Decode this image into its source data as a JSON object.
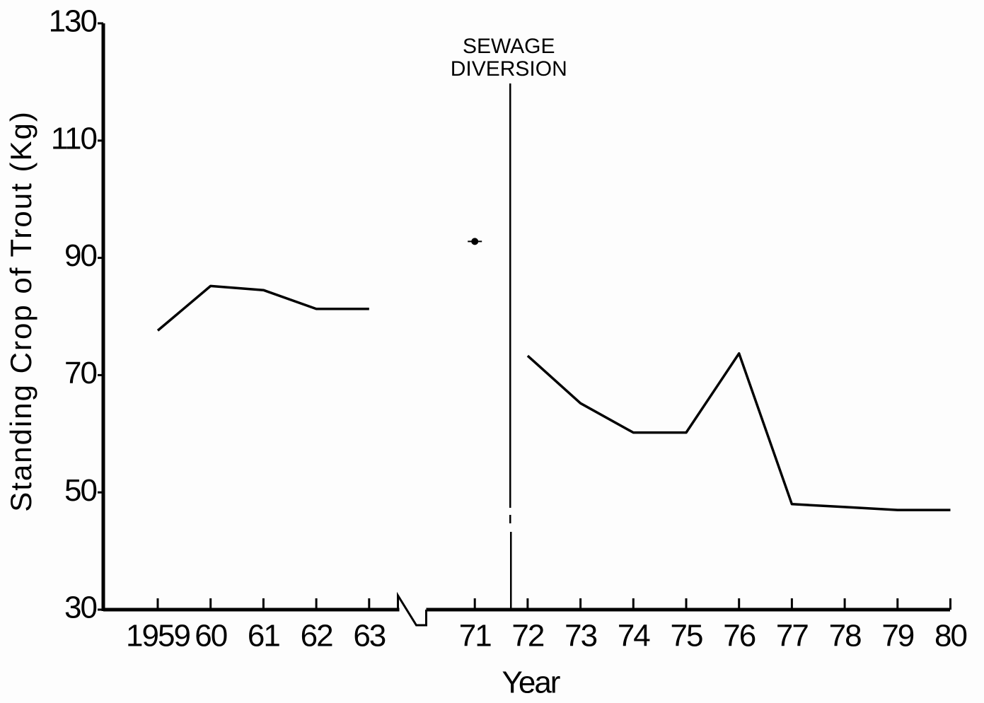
{
  "chart_data": {
    "type": "line",
    "y_label": "Standing Crop of Trout (Kg)",
    "x_label": "Year",
    "categories": [
      "1959",
      "60",
      "61",
      "62",
      "63",
      null,
      "71",
      "72",
      "73",
      "74",
      "75",
      "76",
      "77",
      "78",
      "79",
      "80"
    ],
    "series": [
      {
        "color": "#000000",
        "style": "line",
        "values": [
          77.6,
          85.2,
          84.5,
          81.3,
          81.3,
          null,
          null,
          73.3,
          65.2,
          60.2,
          60.2,
          73.7,
          48,
          47.5,
          47,
          47
        ]
      },
      {
        "color": "#000000",
        "style": "marker",
        "values": [
          null,
          null,
          null,
          null,
          null,
          null,
          92.8,
          null,
          null,
          null,
          null,
          null,
          null,
          null,
          null,
          null
        ]
      }
    ],
    "annotation": [
      "SEWAGE",
      "DIVERSION"
    ],
    "ylim": [
      30,
      130
    ],
    "yticks": [
      30,
      50,
      70,
      90,
      110,
      130
    ],
    "grid": false
  }
}
